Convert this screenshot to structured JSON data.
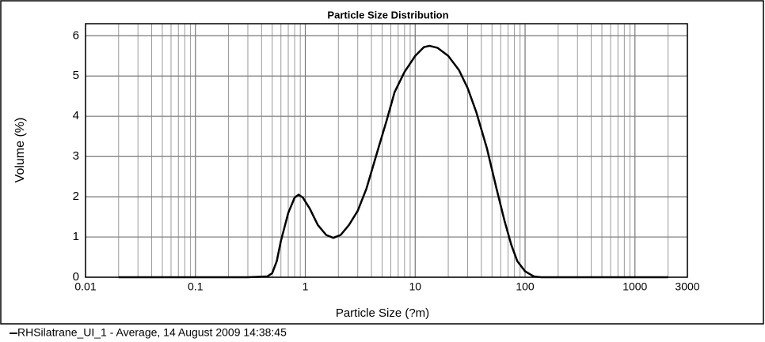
{
  "chart_data": {
    "type": "line",
    "title": "Particle Size Distribution",
    "x_label": "Particle Size (?m)",
    "y_label": "Volume (%)",
    "xscale": "log",
    "grid": true,
    "xlim": [
      0.01,
      3000
    ],
    "ylim": [
      0,
      6.3
    ],
    "xticks": [
      0.01,
      0.1,
      1,
      10,
      100,
      1000,
      3000
    ],
    "xminorticks": [
      0.02,
      0.03,
      0.04,
      0.05,
      0.06,
      0.07,
      0.08,
      0.09,
      0.2,
      0.3,
      0.4,
      0.5,
      0.6,
      0.7,
      0.8,
      0.9,
      2,
      3,
      4,
      5,
      6,
      7,
      8,
      9,
      20,
      30,
      40,
      50,
      60,
      70,
      80,
      90,
      200,
      300,
      400,
      500,
      600,
      700,
      800,
      900,
      2000
    ],
    "yticks": [
      0,
      1,
      2,
      3,
      4,
      5,
      6
    ],
    "series": [
      {
        "name": "RHSilatrane_UI_1 - Average, 14 August 2009 14:38:45",
        "color": "#000000",
        "x": [
          0.02,
          0.1,
          0.3,
          0.45,
          0.5,
          0.55,
          0.6,
          0.7,
          0.8,
          0.87,
          0.95,
          1.1,
          1.3,
          1.55,
          1.8,
          2.1,
          2.5,
          3.0,
          3.6,
          4.5,
          5.5,
          6.5,
          8,
          10,
          12,
          13.5,
          16,
          20,
          25,
          30,
          36,
          45,
          55,
          65,
          75,
          85,
          100,
          120,
          140,
          500,
          2000
        ],
        "values": [
          0,
          0,
          0,
          0.02,
          0.1,
          0.4,
          0.9,
          1.6,
          1.98,
          2.05,
          1.98,
          1.7,
          1.3,
          1.05,
          0.98,
          1.05,
          1.3,
          1.65,
          2.2,
          3.1,
          3.9,
          4.6,
          5.1,
          5.5,
          5.72,
          5.75,
          5.7,
          5.5,
          5.15,
          4.7,
          4.1,
          3.2,
          2.2,
          1.4,
          0.8,
          0.4,
          0.15,
          0.02,
          0,
          0,
          0
        ]
      }
    ]
  }
}
